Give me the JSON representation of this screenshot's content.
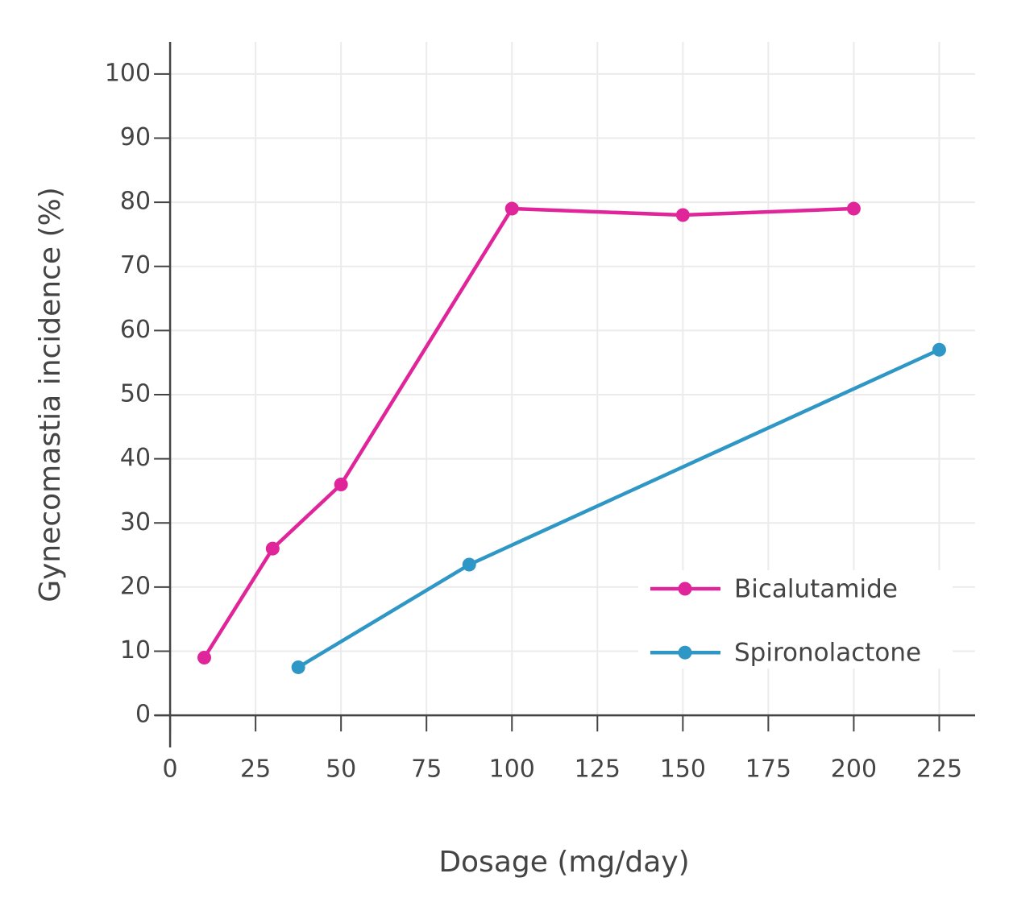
{
  "chart_data": {
    "type": "line",
    "x_label": "Dosage (mg/day)",
    "y_label": "Gynecomastia incidence (%)",
    "series": [
      {
        "name": "Bicalutamide",
        "color": "#e0259a",
        "x": [
          10,
          30,
          50,
          100,
          150,
          200
        ],
        "values": [
          9,
          26,
          36,
          79,
          78,
          79
        ]
      },
      {
        "name": "Spironolactone",
        "color": "#2f97c6",
        "x": [
          37.5,
          87.5,
          225
        ],
        "values": [
          7.5,
          23.5,
          57
        ]
      }
    ],
    "xlim": [
      -4.5,
      235.5
    ],
    "ylim": [
      -5,
      105
    ],
    "xticks": [
      0,
      25,
      50,
      75,
      100,
      125,
      150,
      175,
      200,
      225
    ],
    "yticks": [
      0,
      10,
      20,
      30,
      40,
      50,
      60,
      70,
      80,
      90,
      100
    ],
    "grid": true,
    "legend_position": "lower-right"
  }
}
